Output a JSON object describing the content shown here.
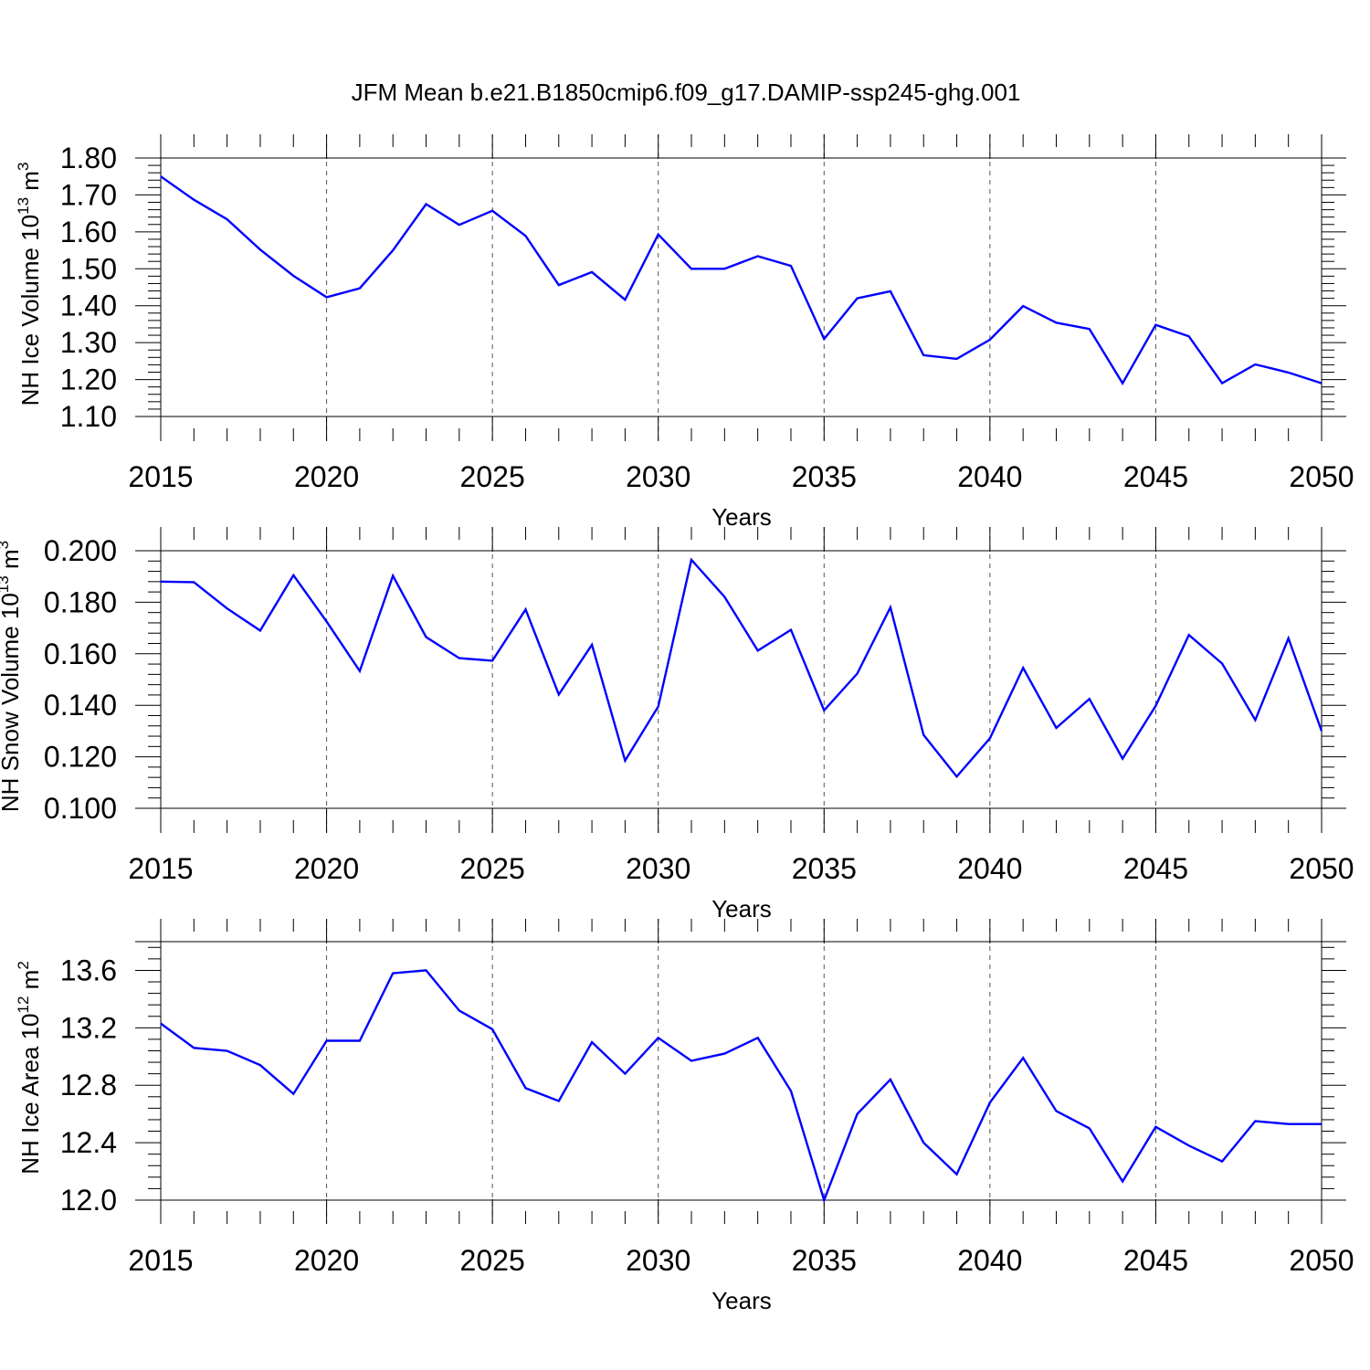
{
  "title": "JFM Mean b.e21.B1850cmip6.f09_g17.DAMIP-ssp245-ghg.001",
  "chart_data": [
    {
      "type": "line",
      "id": "ice-volume",
      "ylabel": "NH Ice Volume 10",
      "ylabel_sup": "13",
      "ylabel_unit": "m",
      "ylabel_unit_sup": "3",
      "xlabel": "Years",
      "xlim": [
        2015,
        2050
      ],
      "ylim": [
        1.1,
        1.8
      ],
      "yticks": [
        "1.10",
        "1.20",
        "1.30",
        "1.40",
        "1.50",
        "1.60",
        "1.70",
        "1.80"
      ],
      "xticks": [
        "2015",
        "2020",
        "2025",
        "2030",
        "2035",
        "2040",
        "2045",
        "2050"
      ],
      "color": "#0000ff",
      "x": [
        2015,
        2016,
        2017,
        2018,
        2019,
        2020,
        2021,
        2022,
        2023,
        2024,
        2025,
        2026,
        2027,
        2028,
        2029,
        2030,
        2031,
        2032,
        2033,
        2034,
        2035,
        2036,
        2037,
        2038,
        2039,
        2040,
        2041,
        2042,
        2043,
        2044,
        2045,
        2046,
        2047,
        2048,
        2049,
        2050
      ],
      "values": [
        1.75,
        1.687,
        1.634,
        1.552,
        1.481,
        1.423,
        1.447,
        1.55,
        1.675,
        1.619,
        1.657,
        1.589,
        1.456,
        1.491,
        1.416,
        1.593,
        1.5,
        1.5,
        1.534,
        1.508,
        1.31,
        1.42,
        1.439,
        1.266,
        1.256,
        1.308,
        1.399,
        1.354,
        1.337,
        1.19,
        1.348,
        1.317,
        1.19,
        1.241,
        1.219,
        1.19
      ]
    },
    {
      "type": "line",
      "id": "snow-volume",
      "ylabel": "NH Snow Volume 10",
      "ylabel_sup": "13",
      "ylabel_unit": "m",
      "ylabel_unit_sup": "3",
      "xlabel": "Years",
      "xlim": [
        2015,
        2050
      ],
      "ylim": [
        0.1,
        0.2
      ],
      "yticks": [
        "0.100",
        "0.120",
        "0.140",
        "0.160",
        "0.180",
        "0.200"
      ],
      "xticks": [
        "2015",
        "2020",
        "2025",
        "2030",
        "2035",
        "2040",
        "2045",
        "2050"
      ],
      "color": "#0000ff",
      "x": [
        2015,
        2016,
        2017,
        2018,
        2019,
        2020,
        2021,
        2022,
        2023,
        2024,
        2025,
        2026,
        2027,
        2028,
        2029,
        2030,
        2031,
        2032,
        2033,
        2034,
        2035,
        2036,
        2037,
        2038,
        2039,
        2040,
        2041,
        2042,
        2043,
        2044,
        2045,
        2046,
        2047,
        2048,
        2049,
        2050
      ],
      "values": [
        0.188,
        0.1878,
        0.1776,
        0.169,
        0.1905,
        0.1725,
        0.1533,
        0.1903,
        0.1665,
        0.1583,
        0.1573,
        0.1772,
        0.1442,
        0.1635,
        0.1185,
        0.1395,
        0.1965,
        0.1821,
        0.1612,
        0.1693,
        0.138,
        0.1523,
        0.178,
        0.1285,
        0.1123,
        0.1272,
        0.1545,
        0.1312,
        0.1425,
        0.1193,
        0.1398,
        0.1673,
        0.1562,
        0.1343,
        0.166,
        0.13
      ]
    },
    {
      "type": "line",
      "id": "ice-area",
      "ylabel": "NH Ice Area 10",
      "ylabel_sup": "12",
      "ylabel_unit": "m",
      "ylabel_unit_sup": "2",
      "xlabel": "Years",
      "xlim": [
        2015,
        2050
      ],
      "ylim": [
        12.0,
        13.8
      ],
      "yticks": [
        "12.0",
        "12.4",
        "12.8",
        "13.2",
        "13.6"
      ],
      "xticks": [
        "2015",
        "2020",
        "2025",
        "2030",
        "2035",
        "2040",
        "2045",
        "2050"
      ],
      "color": "#0000ff",
      "x": [
        2015,
        2016,
        2017,
        2018,
        2019,
        2020,
        2021,
        2022,
        2023,
        2024,
        2025,
        2026,
        2027,
        2028,
        2029,
        2030,
        2031,
        2032,
        2033,
        2034,
        2035,
        2036,
        2037,
        2038,
        2039,
        2040,
        2041,
        2042,
        2043,
        2044,
        2045,
        2046,
        2047,
        2048,
        2049,
        2050
      ],
      "values": [
        13.23,
        13.06,
        13.04,
        12.94,
        12.74,
        13.11,
        13.11,
        13.58,
        13.6,
        13.32,
        13.19,
        12.78,
        12.69,
        13.1,
        12.88,
        13.13,
        12.97,
        13.02,
        13.13,
        12.76,
        12.0,
        12.6,
        12.84,
        12.4,
        12.18,
        12.68,
        12.99,
        12.62,
        12.5,
        12.13,
        12.51,
        12.38,
        12.27,
        12.55,
        12.53,
        12.53
      ]
    }
  ]
}
